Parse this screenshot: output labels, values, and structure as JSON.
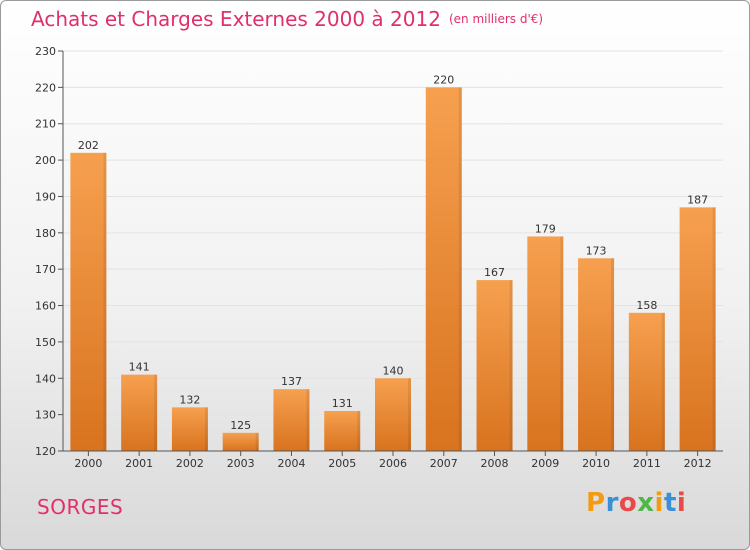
{
  "header": {
    "title": "Achats et Charges Externes 2000 à 2012",
    "subtitle": "(en milliers d'€)"
  },
  "footer": {
    "commune": "SORGES",
    "logo_text": "Proxiti",
    "logo_colors": [
      "#f39c12",
      "#3a8fd6",
      "#e84a4a",
      "#4db848",
      "#f39c12",
      "#3a8fd6",
      "#e84a4a"
    ]
  },
  "chart_data": {
    "type": "bar",
    "title": "Achats et Charges Externes 2000 à 2012",
    "subtitle": "(en milliers d'€)",
    "categories": [
      "2000",
      "2001",
      "2002",
      "2003",
      "2004",
      "2005",
      "2006",
      "2007",
      "2008",
      "2009",
      "2010",
      "2011",
      "2012"
    ],
    "values": [
      202,
      141,
      132,
      125,
      137,
      131,
      140,
      220,
      167,
      179,
      173,
      158,
      187
    ],
    "ylim": [
      120,
      230
    ],
    "yticks": [
      120,
      130,
      140,
      150,
      160,
      170,
      180,
      190,
      200,
      210,
      220,
      230
    ],
    "grid": true,
    "bar_color_top": "#f6a04f",
    "bar_color_bottom": "#d8731f",
    "xlabel": "",
    "ylabel": ""
  }
}
